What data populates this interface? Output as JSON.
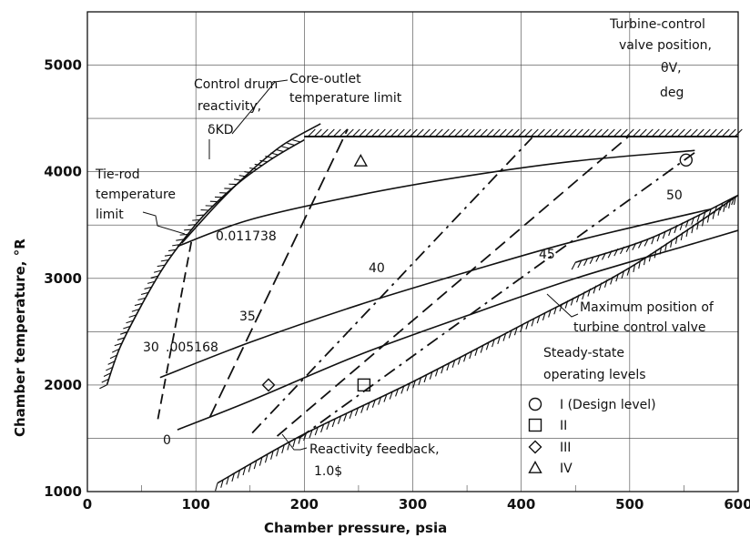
{
  "chart_data": {
    "type": "line",
    "xlabel": "Chamber pressure, psia",
    "ylabel": "Chamber temperature, °R",
    "xlim": [
      0,
      600
    ],
    "ylim": [
      1000,
      5500
    ],
    "x_ticks": [
      "0",
      "100",
      "200",
      "300",
      "400",
      "500",
      "600"
    ],
    "y_ticks": [
      "1000",
      "2000",
      "3000",
      "4000",
      "5000"
    ],
    "grid": true,
    "reactivity_curves": [
      {
        "label": "0",
        "x": [
          83,
          150,
          250,
          350,
          450,
          550,
          600
        ],
        "y": [
          1580,
          1850,
          2280,
          2650,
          3000,
          3300,
          3450
        ]
      },
      {
        "label": ".005168",
        "x": [
          67,
          150,
          250,
          350,
          450,
          575
        ],
        "y": [
          2070,
          2400,
          2750,
          3060,
          3350,
          3650
        ]
      },
      {
        "label": "0.011738",
        "x": [
          83,
          150,
          250,
          350,
          450,
          560
        ],
        "y": [
          3300,
          3550,
          3780,
          3960,
          4100,
          4200
        ]
      },
      {
        "label": "Control drum reactivity, δK_D",
        "x": [
          87,
          120,
          150,
          180,
          215
        ],
        "y": [
          3330,
          3700,
          4000,
          4250,
          4450
        ]
      }
    ],
    "valve_position_lines": [
      {
        "label": "30",
        "x": [
          65,
          96
        ],
        "y": [
          1680,
          3350
        ]
      },
      {
        "label": "35",
        "x": [
          113,
          240
        ],
        "y": [
          1700,
          4400
        ]
      },
      {
        "label": "40",
        "x": [
          152,
          410
        ],
        "y": [
          1550,
          4320
        ]
      },
      {
        "label": "45",
        "x": [
          175,
          500
        ],
        "y": [
          1520,
          4340
        ]
      },
      {
        "label": "50",
        "x": [
          195,
          560
        ],
        "y": [
          1500,
          4180
        ]
      }
    ],
    "limits": [
      {
        "label": "Tie-rod temperature limit",
        "x": [
          18,
          30,
          50,
          70,
          90,
          110,
          140,
          170,
          200
        ],
        "y": [
          2000,
          2350,
          2750,
          3100,
          3380,
          3620,
          3900,
          4120,
          4300
        ]
      },
      {
        "label": "Core-outlet temperature limit",
        "x": [
          200,
          600
        ],
        "y": [
          4330,
          4330
        ]
      },
      {
        "label": "Maximum position of turbine control valve",
        "x": [
          450,
          520,
          600
        ],
        "y": [
          3150,
          3380,
          3780
        ]
      },
      {
        "label": "Reactivity feedback, 1.0$",
        "x": [
          120,
          200,
          300,
          400,
          500,
          600
        ],
        "y": [
          1080,
          1540,
          2030,
          2560,
          3100,
          3780
        ]
      }
    ],
    "operating_levels": [
      {
        "label": "I (Design level)",
        "marker": "circle",
        "x": 552,
        "y": 4110
      },
      {
        "label": "II",
        "marker": "square",
        "x": 255,
        "y": 2000
      },
      {
        "label": "III",
        "marker": "diamond",
        "x": 167,
        "y": 2000
      },
      {
        "label": "IV",
        "marker": "triangle",
        "x": 252,
        "y": 4100
      }
    ],
    "annotations": {
      "valve_title": [
        "Turbine-control",
        "valve position,",
        "θV,",
        "deg"
      ],
      "drum_title": [
        "Control drum",
        "reactivity,",
        "δKD"
      ],
      "core_limit": [
        "Core-outlet",
        "temperature limit"
      ],
      "tierod": [
        "Tie-rod",
        "temperature",
        "limit"
      ],
      "max_valve": [
        "Maximum position of",
        "turbine control valve"
      ],
      "steady": [
        "Steady-state",
        "operating levels"
      ],
      "feedback": [
        "Reactivity feedback,",
        "1.0$"
      ]
    },
    "legend_labels": [
      "I (Design level)",
      "II",
      "III",
      "IV"
    ]
  }
}
